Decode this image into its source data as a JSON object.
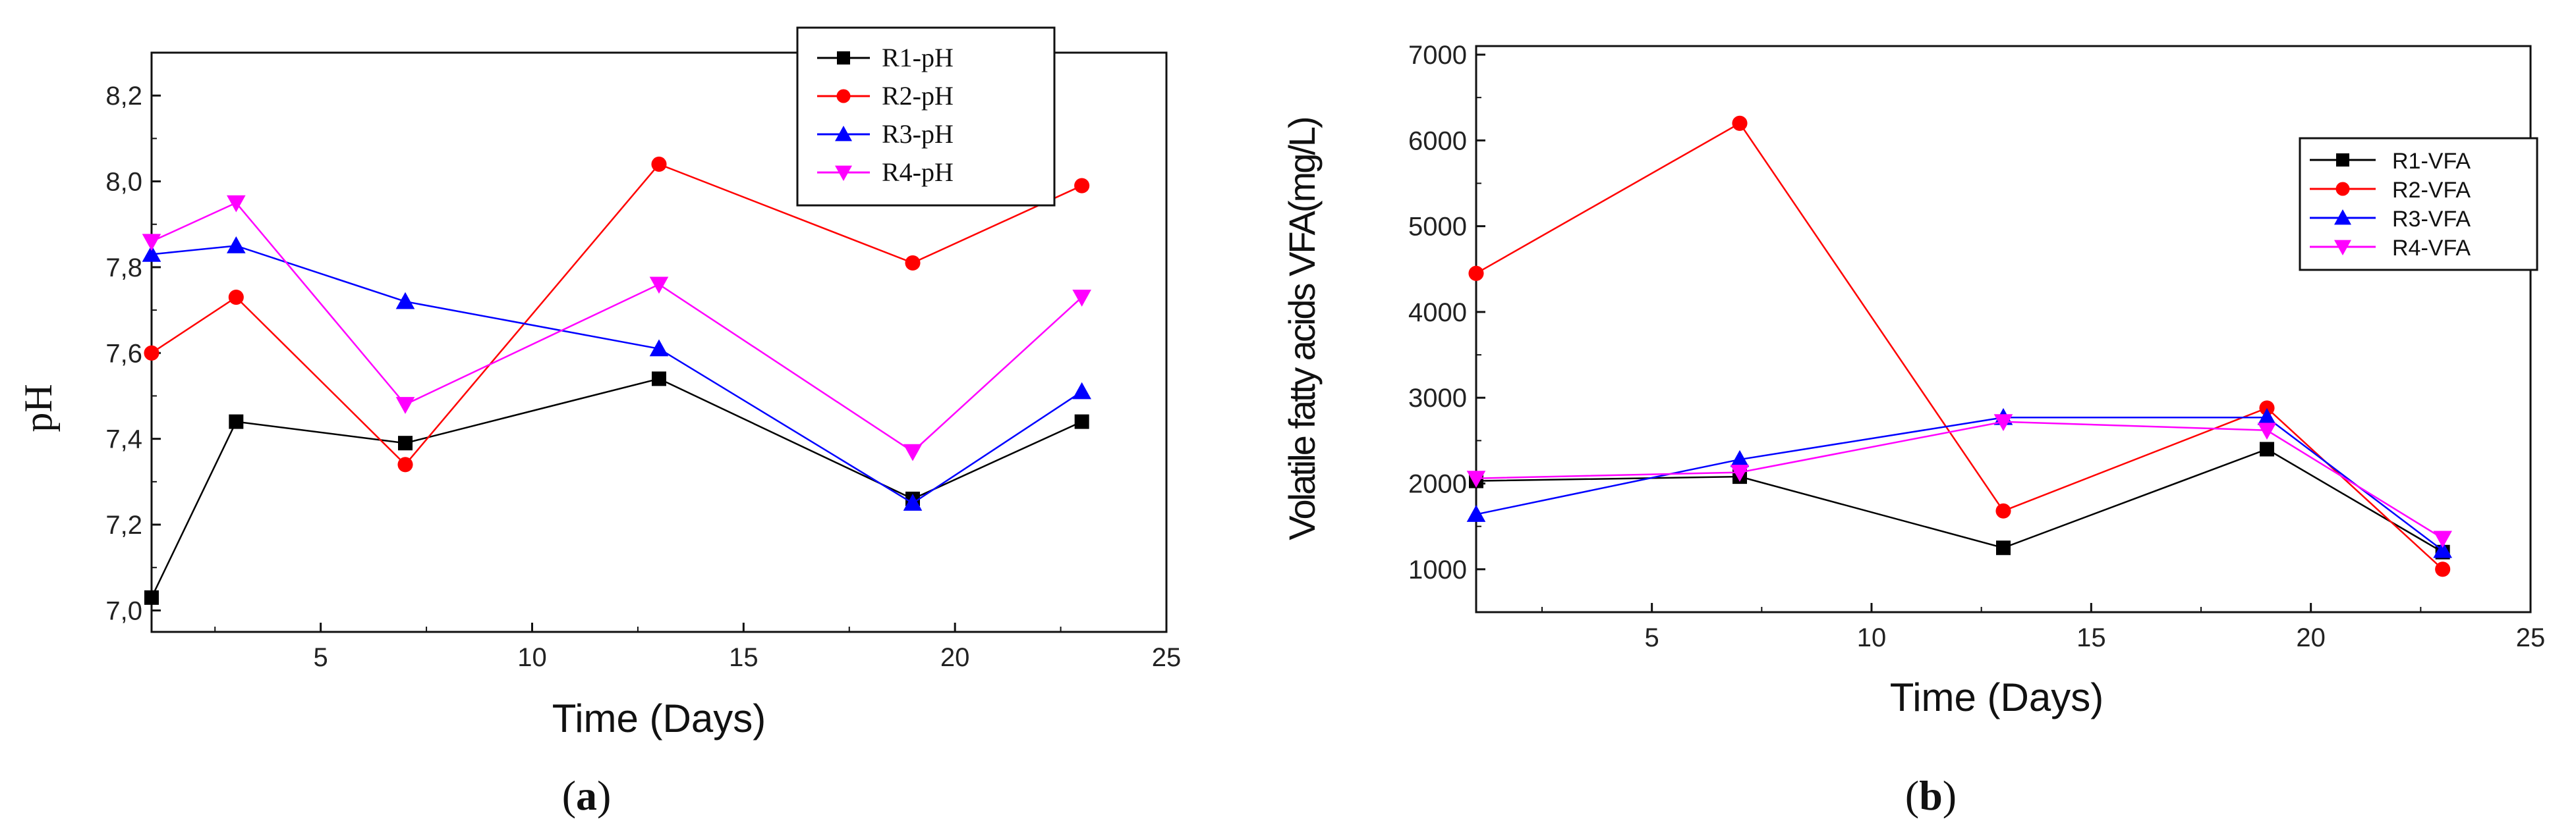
{
  "chart_data": [
    {
      "panel": "a",
      "type": "line",
      "title": "",
      "xlabel": "Time (Days)",
      "ylabel": "pH",
      "xlim": [
        1,
        25
      ],
      "ylim": [
        6.95,
        8.3
      ],
      "xticks": [
        5,
        10,
        15,
        20,
        25
      ],
      "xtick_labels": [
        "5",
        "10",
        "15",
        "20",
        "25"
      ],
      "yticks": [
        7.0,
        7.2,
        7.4,
        7.6,
        7.8,
        8.0,
        8.2
      ],
      "ytick_labels": [
        "7,0",
        "7,2",
        "7,4",
        "7,6",
        "7,8",
        "8,0",
        "8,2"
      ],
      "legend_position": "top-right",
      "x": [
        1,
        3,
        7,
        13,
        19,
        23
      ],
      "series": [
        {
          "name": "R1-pH",
          "color": "#000000",
          "marker": "square",
          "values": [
            7.03,
            7.44,
            7.39,
            7.54,
            7.26,
            7.44
          ]
        },
        {
          "name": "R2-pH",
          "color": "#ff0000",
          "marker": "circle",
          "values": [
            7.6,
            7.73,
            7.34,
            8.04,
            7.81,
            7.99
          ]
        },
        {
          "name": "R3-pH",
          "color": "#0000ff",
          "marker": "triangle-up",
          "values": [
            7.83,
            7.85,
            7.72,
            7.61,
            7.25,
            7.51
          ]
        },
        {
          "name": "R4-pH",
          "color": "#ff00ff",
          "marker": "triangle-down",
          "values": [
            7.86,
            7.95,
            7.48,
            7.76,
            7.37,
            7.73
          ]
        }
      ]
    },
    {
      "panel": "b",
      "type": "line",
      "title": "",
      "xlabel": "Time (Days)",
      "ylabel": "Volatile fatty acids VFA(mg/L)",
      "xlim": [
        1,
        25
      ],
      "ylim": [
        500,
        7100
      ],
      "xticks": [
        5,
        10,
        15,
        20,
        25
      ],
      "xtick_labels": [
        "5",
        "10",
        "15",
        "20",
        "25"
      ],
      "yticks": [
        1000,
        2000,
        3000,
        4000,
        5000,
        6000,
        7000
      ],
      "ytick_labels": [
        "1000",
        "2000",
        "3000",
        "4000",
        "5000",
        "6000",
        "7000"
      ],
      "legend_position": "top-right",
      "x": [
        1,
        7,
        13,
        19,
        23
      ],
      "series": [
        {
          "name": "R1-VFA",
          "color": "#000000",
          "marker": "square",
          "values": [
            2030,
            2080,
            1250,
            2400,
            1200
          ]
        },
        {
          "name": "R2-VFA",
          "color": "#ff0000",
          "marker": "circle",
          "values": [
            4450,
            6200,
            1680,
            2880,
            1000
          ]
        },
        {
          "name": "R3-VFA",
          "color": "#0000ff",
          "marker": "triangle-up",
          "values": [
            1640,
            2280,
            2770,
            2770,
            1220
          ]
        },
        {
          "name": "R4-VFA",
          "color": "#ff00ff",
          "marker": "triangle-down",
          "values": [
            2060,
            2130,
            2720,
            2620,
            1360
          ]
        }
      ]
    }
  ],
  "captions": [
    {
      "open": "(",
      "letter": "a",
      "close": ")"
    },
    {
      "open": "(",
      "letter": "b",
      "close": ")"
    }
  ]
}
